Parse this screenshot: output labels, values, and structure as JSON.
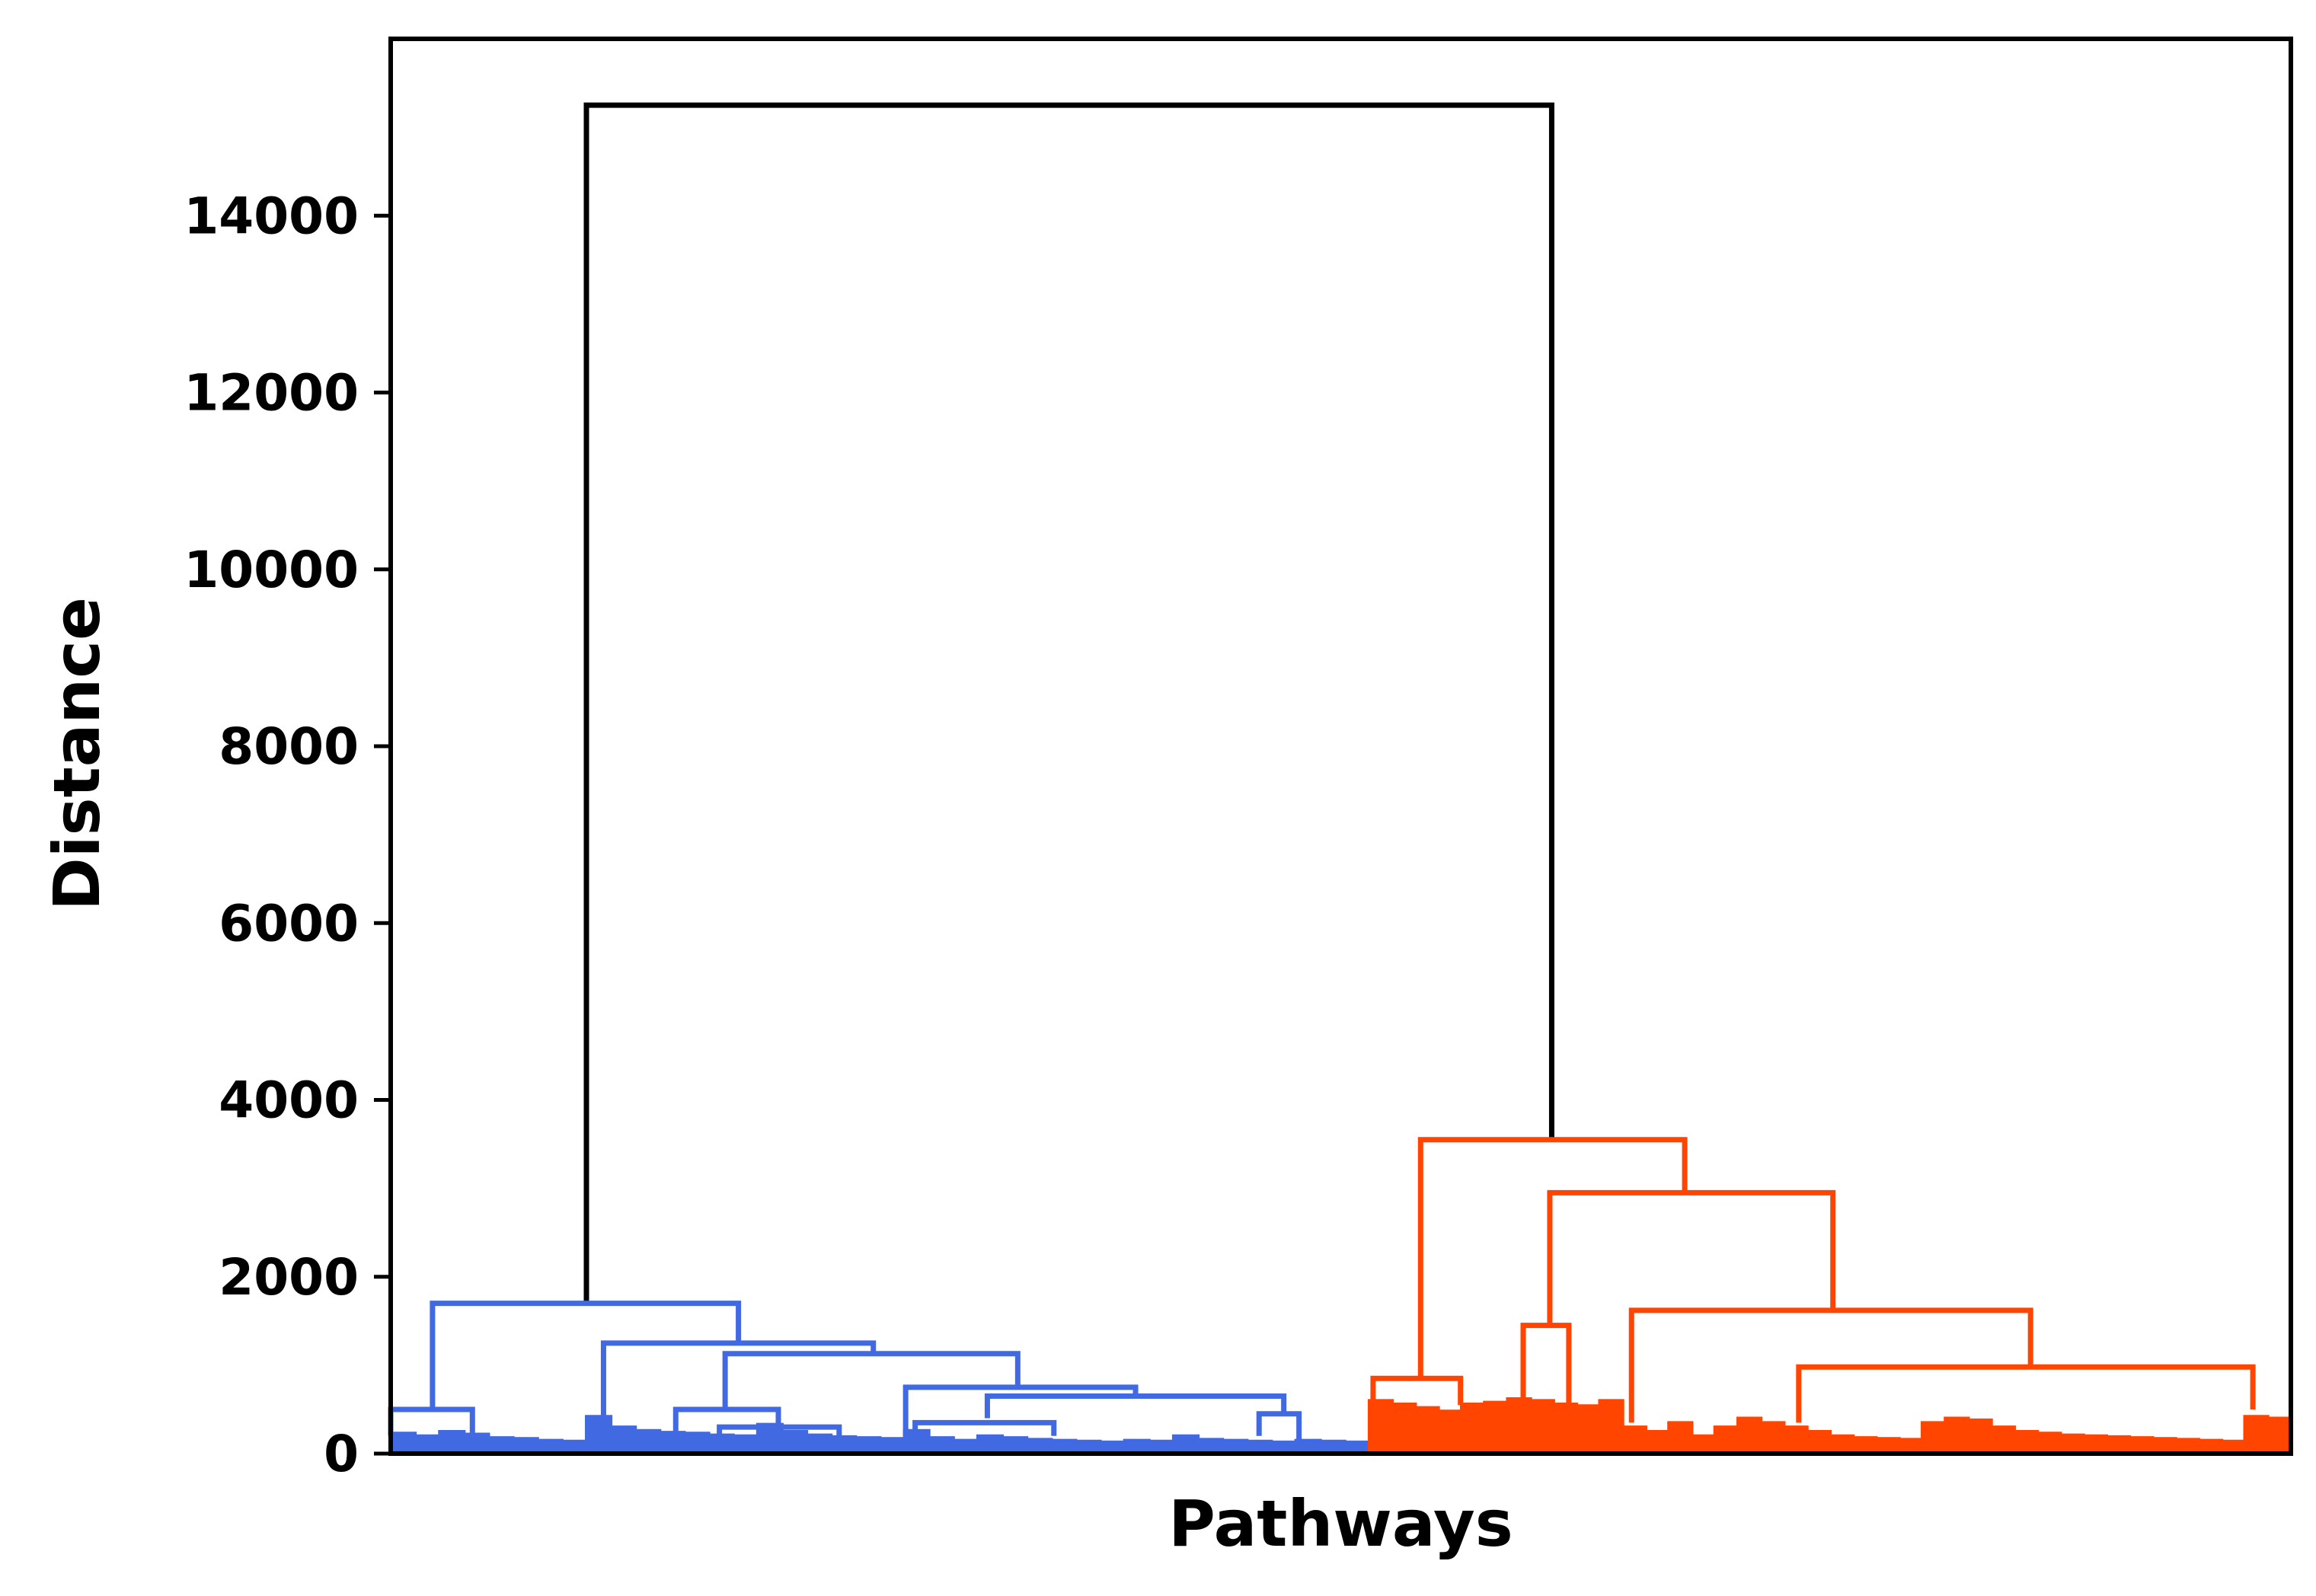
{
  "chart_data": {
    "type": "dendrogram",
    "xlabel": "Pathways",
    "ylabel": "Distance",
    "ylim": [
      0,
      16000
    ],
    "yticks": [
      0,
      2000,
      4000,
      6000,
      8000,
      10000,
      12000,
      14000
    ],
    "colors": {
      "cluster_1": "#4169E1",
      "cluster_2": "#FF4500",
      "root": "#000000",
      "axes": "#000000"
    },
    "links": [
      {
        "color": "root",
        "x": [
          0.103,
          0.103,
          0.611,
          0.611
        ],
        "y": [
          1700,
          15250,
          15250,
          3550
        ]
      },
      {
        "color": "cluster_1",
        "x": [
          0.022,
          0.022,
          0.183,
          0.183
        ],
        "y": [
          500,
          1700,
          1700,
          1250
        ]
      },
      {
        "color": "cluster_1",
        "x": [
          0.0,
          0.0,
          0.043,
          0.043
        ],
        "y": [
          200,
          500,
          500,
          120
        ]
      },
      {
        "color": "cluster_1",
        "x": [
          0.112,
          0.112,
          0.254,
          0.254
        ],
        "y": [
          300,
          1250,
          1250,
          1130
        ]
      },
      {
        "color": "cluster_1",
        "x": [
          0.176,
          0.176,
          0.33,
          0.33
        ],
        "y": [
          500,
          1130,
          1130,
          750
        ]
      },
      {
        "color": "cluster_1",
        "x": [
          0.15,
          0.15,
          0.204,
          0.204
        ],
        "y": [
          250,
          500,
          500,
          300
        ]
      },
      {
        "color": "cluster_1",
        "x": [
          0.173,
          0.173,
          0.236,
          0.236
        ],
        "y": [
          150,
          300,
          300,
          200
        ]
      },
      {
        "color": "cluster_1",
        "x": [
          0.271,
          0.271,
          0.392,
          0.392
        ],
        "y": [
          200,
          750,
          750,
          650
        ]
      },
      {
        "color": "cluster_1",
        "x": [
          0.314,
          0.314,
          0.47,
          0.47
        ],
        "y": [
          400,
          650,
          650,
          450
        ]
      },
      {
        "color": "cluster_1",
        "x": [
          0.276,
          0.276,
          0.349,
          0.349
        ],
        "y": [
          200,
          350,
          350,
          200
        ]
      },
      {
        "color": "cluster_1",
        "x": [
          0.457,
          0.457,
          0.478,
          0.478
        ],
        "y": [
          200,
          450,
          450,
          150
        ]
      },
      {
        "color": "cluster_2",
        "x": [
          0.542,
          0.542,
          0.681,
          0.681
        ],
        "y": [
          850,
          3550,
          3550,
          2950
        ]
      },
      {
        "color": "cluster_2",
        "x": [
          0.517,
          0.517,
          0.563,
          0.563
        ],
        "y": [
          550,
          850,
          850,
          550
        ]
      },
      {
        "color": "cluster_2",
        "x": [
          0.61,
          0.61,
          0.759,
          0.759
        ],
        "y": [
          1450,
          2950,
          2950,
          1620
        ]
      },
      {
        "color": "cluster_2",
        "x": [
          0.596,
          0.596,
          0.62,
          0.62
        ],
        "y": [
          300,
          1450,
          1450,
          350
        ]
      },
      {
        "color": "cluster_2",
        "x": [
          0.653,
          0.653,
          0.863,
          0.863
        ],
        "y": [
          350,
          1620,
          1620,
          980
        ]
      },
      {
        "color": "cluster_2",
        "x": [
          0.741,
          0.741,
          0.98,
          0.98
        ],
        "y": [
          350,
          980,
          980,
          500
        ]
      }
    ],
    "leaf_masses": [
      {
        "color": "cluster_1",
        "x0": 0.0,
        "x1": 0.515,
        "h": [
          230,
          200,
          250,
          220,
          180,
          170,
          150,
          140,
          420,
          300,
          260,
          240,
          230,
          210,
          200,
          330,
          250,
          210,
          190,
          180,
          170,
          260,
          180,
          150,
          200,
          180,
          160,
          150,
          140,
          130,
          150,
          140,
          200,
          160,
          150,
          140,
          130,
          150,
          140,
          130
        ]
      },
      {
        "color": "cluster_2",
        "x0": 0.515,
        "x1": 1.0,
        "h": [
          600,
          560,
          520,
          480,
          560,
          580,
          620,
          600,
          560,
          540,
          600,
          300,
          250,
          350,
          200,
          300,
          400,
          350,
          300,
          250,
          200,
          180,
          170,
          160,
          350,
          400,
          380,
          300,
          250,
          230,
          210,
          200,
          190,
          180,
          170,
          160,
          150,
          140,
          420,
          400
        ]
      }
    ]
  }
}
